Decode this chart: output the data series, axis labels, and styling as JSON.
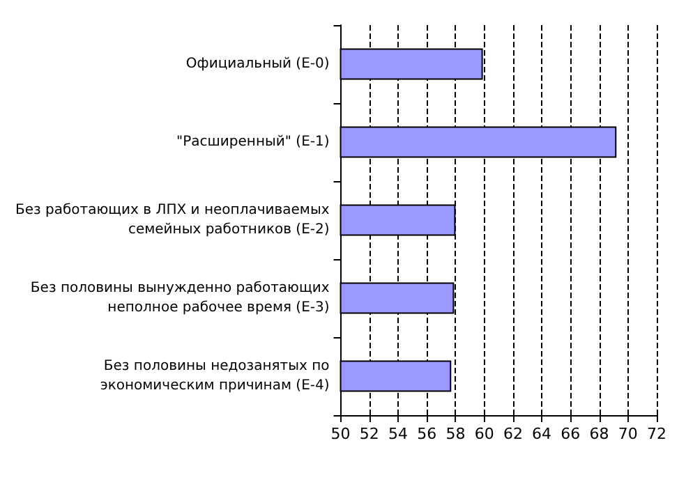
{
  "chart_data": {
    "type": "bar",
    "orientation": "horizontal",
    "categories": [
      "Официальный (Е-0)",
      "\"Расширенный\" (Е-1)",
      "Без работающих в ЛПХ и неоплачиваемых\nсемейных работников (Е-2)",
      "Без половины вынужденно работающих\nнеполное рабочее время (Е-3)",
      "Без половины недозанятых по\nэкономическим причинам (Е-4)"
    ],
    "values": [
      59.9,
      69.2,
      58.0,
      57.9,
      57.7
    ],
    "color": "#9999ff",
    "xlim": [
      50,
      72
    ],
    "xticks": [
      50,
      52,
      54,
      56,
      58,
      60,
      62,
      64,
      66,
      68,
      70,
      72
    ],
    "grid": "x",
    "line_style": "dashed"
  }
}
